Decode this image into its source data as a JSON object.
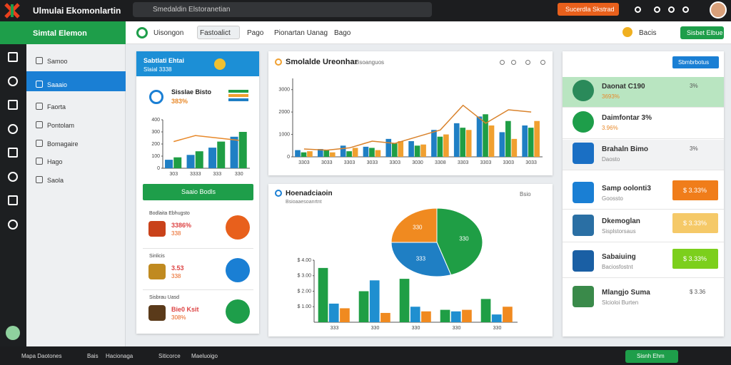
{
  "topbar": {
    "title": "Ulmulai Ekomonlartin",
    "search": "Smedaldin Elstoranetian",
    "button": "Sucerdla Skstrad"
  },
  "navbar": {
    "brand": "Simtal Elemon",
    "tabs": [
      "Uisongon",
      "Fastoalict",
      "Pago",
      "Pionartan Uanag",
      "Bago"
    ],
    "user": "Bacis",
    "button": "Sisbet Elbue"
  },
  "sidebar": {
    "items": [
      "Samoo",
      "Saaaio",
      "Faorta",
      "Pontolam",
      "Bomagaire",
      "Hago",
      "Saola"
    ],
    "active": 1
  },
  "summary_card": {
    "title": "Sabtlati Ehtai",
    "subtitle": "Slaial 3338",
    "metric_label": "Sisslae Bisto",
    "metric_value": "383%",
    "button": "Saaio Bodls",
    "items": [
      {
        "title": "Bodlaita Ebhugsto",
        "value": "3386%",
        "note": "338"
      },
      {
        "title": "Sinlicis",
        "value": "3.53",
        "note": "338"
      },
      {
        "title": "Sisbrau Uasd",
        "value": "Bie0 Ksit",
        "note": "308%"
      }
    ]
  },
  "trend_card": {
    "title": "Smolalde Ureonhar",
    "subtitle": "Bsoanguos"
  },
  "share_card": {
    "title": "Hoenadciaoin",
    "subtitle": "Bsioaaesoanrtnt",
    "tag": "Bsio"
  },
  "right_panel": {
    "button": "Sbmbrbotus",
    "items": [
      {
        "title": "Daonat C190",
        "value": "3693%",
        "note": "3%"
      },
      {
        "title": "Daimfontar 3%",
        "value": "3.96%"
      },
      {
        "title": "Brahaln Bimo",
        "value": "Daosto",
        "note": "3%"
      },
      {
        "title": "Samp oolonti3",
        "value": "Goossto",
        "button": "$ 3.33%"
      },
      {
        "title": "Dkemoglan",
        "value": "Sisplstorsaus",
        "button": "$ 3.33%"
      },
      {
        "title": "Sabaiuing",
        "value": "Baciosfostnt",
        "button": "$ 3.33%"
      },
      {
        "title": "Mlangjo Suma",
        "value": "Slcioloi Burten",
        "note": "$ 3.36"
      }
    ]
  },
  "bottombar": {
    "items": [
      "Mapa Daotones",
      "Bais",
      "Hacionaga",
      "Siticorce",
      "Maeluoigo"
    ],
    "button": "Sisnh Ehm"
  },
  "chart_data": [
    {
      "type": "bar",
      "categories": [
        "303",
        "3333",
        "333",
        "330"
      ],
      "series": [
        {
          "name": "Blue",
          "color": "#1f7fc4",
          "values": [
            70,
            110,
            170,
            260
          ]
        },
        {
          "name": "Green",
          "color": "#1f9e45",
          "values": [
            90,
            140,
            220,
            300
          ]
        },
        {
          "name": "Trend",
          "color": "#e8892a",
          "type": "line",
          "values": [
            220,
            270,
            250,
            230
          ]
        }
      ],
      "ylim": [
        0,
        400
      ],
      "yticks": [
        0,
        100,
        200,
        300,
        400
      ]
    },
    {
      "type": "bar",
      "categories": [
        "3303",
        "3033",
        "3303",
        "3033",
        "3303",
        "3030",
        "3308",
        "3303",
        "3303",
        "3303",
        "3033"
      ],
      "series": [
        {
          "name": "Blue",
          "color": "#1f7fc4",
          "values": [
            300,
            350,
            500,
            450,
            800,
            700,
            1200,
            1500,
            1800,
            1100,
            1400
          ]
        },
        {
          "name": "Green",
          "color": "#1f9e45",
          "values": [
            200,
            300,
            250,
            400,
            600,
            500,
            900,
            1300,
            1900,
            1600,
            1300
          ]
        },
        {
          "name": "Orange",
          "color": "#f0a030",
          "values": [
            250,
            200,
            400,
            300,
            700,
            550,
            1000,
            1200,
            1400,
            800,
            1600
          ]
        },
        {
          "name": "Trend",
          "color": "#d9822b",
          "type": "line",
          "values": [
            350,
            300,
            400,
            700,
            600,
            900,
            1200,
            2300,
            1500,
            2100,
            2000
          ]
        }
      ],
      "ylim": [
        0,
        3500
      ],
      "yticks": [
        0,
        1000,
        2000,
        3000
      ]
    },
    {
      "type": "pie",
      "categories": [
        "330",
        "333",
        "330"
      ],
      "values": [
        45,
        30,
        25
      ],
      "colors": [
        "#1f9e45",
        "#1f7fc4",
        "#f08a20"
      ]
    },
    {
      "type": "bar",
      "categories": [
        "333",
        "330",
        "330",
        "330",
        "330"
      ],
      "series": [
        {
          "name": "Green",
          "color": "#1f9e45",
          "values": [
            3.5,
            2.0,
            2.8,
            0.8,
            1.5
          ]
        },
        {
          "name": "Blue",
          "color": "#1f8fd0",
          "values": [
            1.2,
            2.7,
            1.0,
            0.7,
            0.5
          ]
        },
        {
          "name": "Orange",
          "color": "#f08a20",
          "values": [
            0.9,
            0.6,
            0.7,
            0.8,
            1.0
          ]
        }
      ],
      "ylim": [
        0,
        4
      ],
      "yticks": [
        {
          "value": 1,
          "label": "$ 1.00"
        },
        {
          "value": 2,
          "label": "$ 2.00"
        },
        {
          "value": 3,
          "label": "$ 3.00"
        },
        {
          "value": 4,
          "label": "$ 4.00"
        }
      ]
    }
  ]
}
